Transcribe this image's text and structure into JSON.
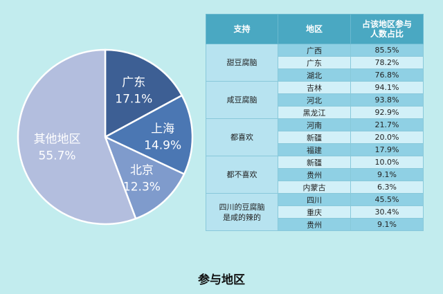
{
  "caption": "参与地区",
  "chart_data": {
    "type": "pie",
    "slices": [
      {
        "label": "广东",
        "value": 17.1,
        "display": "17.1%",
        "color": "#3d5f94"
      },
      {
        "label": "上海",
        "value": 14.9,
        "display": "14.9%",
        "color": "#4b77b3"
      },
      {
        "label": "北京",
        "value": 12.3,
        "display": "12.3%",
        "color": "#7f9bcc"
      },
      {
        "label": "其他地区",
        "value": 55.7,
        "display": "55.7%",
        "color": "#b3bede"
      }
    ]
  },
  "table": {
    "headers": {
      "support": "支持",
      "region": "地区",
      "share": [
        "占该地区参与",
        "人数占比"
      ]
    },
    "groups": [
      {
        "name": [
          "甜豆腐脑"
        ],
        "rows": [
          {
            "region": "广西",
            "pct": "85.5%"
          },
          {
            "region": "广东",
            "pct": "78.2%"
          },
          {
            "region": "湖北",
            "pct": "76.8%"
          }
        ]
      },
      {
        "name": [
          "咸豆腐脑"
        ],
        "rows": [
          {
            "region": "吉林",
            "pct": "94.1%"
          },
          {
            "region": "河北",
            "pct": "93.8%"
          },
          {
            "region": "黑龙江",
            "pct": "92.9%"
          }
        ]
      },
      {
        "name": [
          "都喜欢"
        ],
        "rows": [
          {
            "region": "河南",
            "pct": "21.7%"
          },
          {
            "region": "新疆",
            "pct": "20.0%"
          },
          {
            "region": "福建",
            "pct": "17.9%"
          }
        ]
      },
      {
        "name": [
          "都不喜欢"
        ],
        "rows": [
          {
            "region": "新疆",
            "pct": "10.0%"
          },
          {
            "region": "贵州",
            "pct": "9.1%"
          },
          {
            "region": "内蒙古",
            "pct": "6.3%"
          }
        ]
      },
      {
        "name": [
          "四川的豆腐脑",
          "是咸的辣的"
        ],
        "rows": [
          {
            "region": "四川",
            "pct": "45.5%"
          },
          {
            "region": "重庆",
            "pct": "30.4%"
          },
          {
            "region": "贵州",
            "pct": "9.1%"
          }
        ]
      }
    ]
  }
}
